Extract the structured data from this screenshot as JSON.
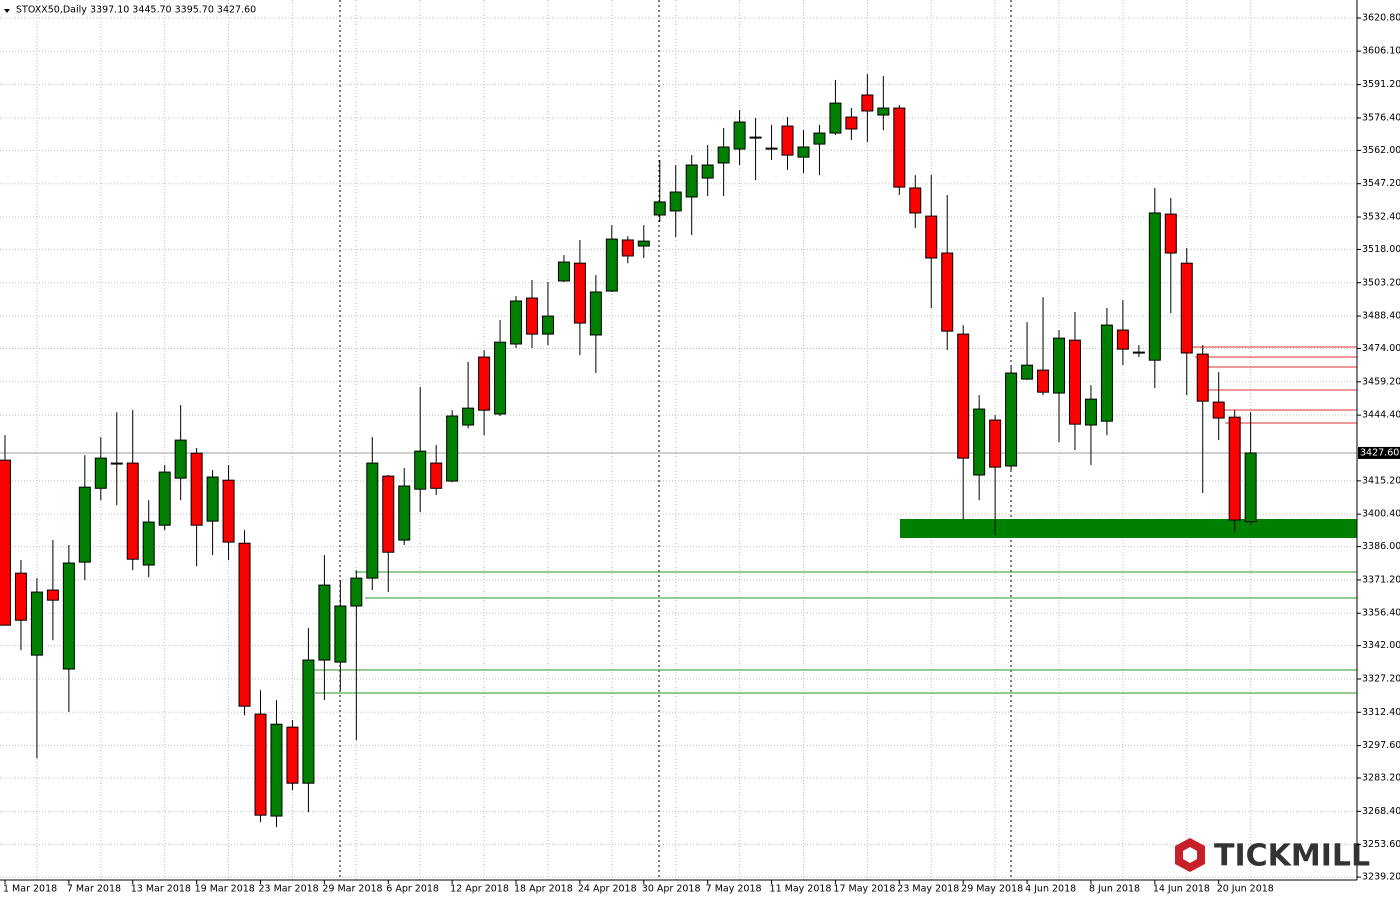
{
  "chart_data": {
    "type": "candlestick",
    "title": "STOXX50,Daily",
    "ohlc_label": "3397.10 3445.70 3395.70 3427.60",
    "logo": "TICKMILL",
    "up_color": "#008000",
    "down_color": "#ff0000",
    "grid": true,
    "categories": [
      "1 Mar 2018",
      null,
      null,
      null,
      "7 Mar 2018",
      null,
      null,
      null,
      "13 Mar 2018",
      null,
      null,
      null,
      "19 Mar 2018",
      null,
      null,
      null,
      "23 Mar 2018",
      null,
      null,
      null,
      "29 Mar 2018",
      null,
      null,
      null,
      "6 Apr 2018",
      null,
      null,
      null,
      "12 Apr 2018",
      null,
      null,
      null,
      "18 Apr 2018",
      null,
      null,
      null,
      "24 Apr 2018",
      null,
      null,
      null,
      "30 Apr 2018",
      null,
      null,
      null,
      "7 May 2018",
      null,
      null,
      null,
      "11 May 2018",
      null,
      null,
      null,
      "17 May 2018",
      null,
      null,
      null,
      "23 May 2018",
      null,
      null,
      null,
      "29 May 2018",
      null,
      null,
      null,
      "4 Jun 2018",
      null,
      null,
      null,
      "8 Jun 2018",
      null,
      null,
      null,
      "14 Jun 2018",
      null,
      null,
      null,
      "20 Jun 2018",
      null,
      null
    ],
    "open": [
      3424.4,
      3374.2,
      3337.8,
      3366.7,
      3331.6,
      3379.1,
      3411.9,
      3423.1,
      3423.1,
      3377.8,
      3395.5,
      3416.4,
      3427.5,
      3397.3,
      3415.5,
      3387.5,
      3311.6,
      3266.3,
      3305.8,
      3280.9,
      3335.6,
      3334.7,
      3359.6,
      3372.0,
      3417.3,
      3388.9,
      3411.5,
      3423.1,
      3415.1,
      3440.0,
      3470.2,
      3444.9,
      3476.0,
      3496.4,
      3480.4,
      3504.0,
      3511.9,
      3480.0,
      3499.5,
      3522.2,
      3519.5,
      3533.3,
      3535.1,
      3541.3,
      3549.7,
      3556.4,
      3562.6,
      3567.9,
      3563.0,
      3572.8,
      3559.0,
      3564.8,
      3569.7,
      3576.8,
      3586.6,
      3577.7,
      3580.8,
      3545.3,
      3532.8,
      3516.4,
      3480.4,
      3417.8,
      3442.2,
      3421.8,
      3460.4,
      3464.4,
      3454.2,
      3477.7,
      3440.0,
      3441.7,
      3482.2,
      3472.4,
      3468.8,
      3533.7,
      3511.9,
      3471.5,
      3450.2,
      3443.5,
      3397.1
    ],
    "high": [
      3435.5,
      3380.0,
      3372.0,
      3388.9,
      3386.7,
      3426.6,
      3434.6,
      3445.7,
      3446.6,
      3406.6,
      3422.2,
      3448.9,
      3429.8,
      3420.0,
      3422.2,
      3393.3,
      3322.2,
      3317.8,
      3308.9,
      3349.8,
      3382.2,
      3371.1,
      3375.5,
      3434.6,
      3417.8,
      3420.9,
      3456.9,
      3431.1,
      3446.6,
      3468.0,
      3473.3,
      3486.6,
      3497.3,
      3504.4,
      3503.5,
      3515.5,
      3522.2,
      3506.6,
      3528.8,
      3523.9,
      3528.8,
      3557.7,
      3555.5,
      3559.9,
      3564.4,
      3571.9,
      3579.9,
      3576.4,
      3573.3,
      3576.8,
      3571.0,
      3573.3,
      3593.3,
      3580.8,
      3595.9,
      3595.0,
      3582.1,
      3551.0,
      3551.0,
      3542.2,
      3484.4,
      3453.3,
      3444.4,
      3466.6,
      3485.7,
      3496.8,
      3482.2,
      3490.2,
      3457.7,
      3492.0,
      3495.5,
      3475.5,
      3545.3,
      3540.8,
      3518.6,
      3475.5,
      3463.5,
      3446.6,
      3445.7
    ],
    "low": [
      3351.1,
      3340.0,
      3292.0,
      3344.4,
      3312.5,
      3371.1,
      3406.6,
      3404.4,
      3375.5,
      3372.4,
      3393.3,
      3406.6,
      3377.3,
      3382.2,
      3380.0,
      3311.1,
      3263.6,
      3261.4,
      3277.8,
      3268.0,
      3317.8,
      3322.2,
      3300.0,
      3366.7,
      3365.8,
      3386.7,
      3401.3,
      3408.9,
      3414.6,
      3438.6,
      3435.5,
      3444.0,
      3474.2,
      3474.2,
      3475.5,
      3503.5,
      3471.1,
      3463.1,
      3499.1,
      3511.9,
      3514.2,
      3530.2,
      3523.5,
      3524.4,
      3541.7,
      3541.7,
      3555.5,
      3548.8,
      3557.7,
      3553.3,
      3551.9,
      3551.0,
      3568.8,
      3566.6,
      3565.7,
      3571.0,
      3542.2,
      3527.5,
      3492.0,
      3473.3,
      3397.8,
      3406.6,
      3391.1,
      3420.0,
      3460.0,
      3453.3,
      3432.4,
      3428.9,
      3422.2,
      3435.5,
      3466.6,
      3470.2,
      3456.4,
      3489.7,
      3453.3,
      3409.8,
      3433.3,
      3392.4,
      3395.7
    ],
    "close": [
      3351.1,
      3353.3,
      3365.8,
      3362.2,
      3378.7,
      3412.4,
      3425.3,
      3422.9,
      3380.4,
      3396.9,
      3419.1,
      3433.3,
      3395.5,
      3416.9,
      3388.0,
      3315.1,
      3266.7,
      3307.1,
      3280.9,
      3335.6,
      3368.9,
      3359.6,
      3372.0,
      3423.1,
      3383.5,
      3412.9,
      3428.4,
      3411.9,
      3444.0,
      3447.5,
      3446.6,
      3476.8,
      3495.1,
      3480.4,
      3488.4,
      3512.4,
      3485.3,
      3499.1,
      3522.6,
      3515.1,
      3521.7,
      3539.1,
      3543.5,
      3555.5,
      3555.5,
      3563.5,
      3574.6,
      3567.7,
      3562.6,
      3559.9,
      3563.5,
      3569.7,
      3583.0,
      3571.5,
      3579.5,
      3580.8,
      3545.7,
      3534.2,
      3514.2,
      3481.7,
      3425.3,
      3447.1,
      3421.3,
      3463.1,
      3466.6,
      3454.6,
      3478.6,
      3440.4,
      3451.5,
      3484.4,
      3473.7,
      3472.2,
      3534.2,
      3516.4,
      3472.0,
      3450.6,
      3443.1,
      3397.8,
      3427.6
    ],
    "ylim": [
      3237.9,
      3628.8
    ],
    "yticks": [
      {
        "value": 3620.8,
        "label": "3620.80"
      },
      {
        "value": 3606.1,
        "label": "3606.10"
      },
      {
        "value": 3591.2,
        "label": "3591.20"
      },
      {
        "value": 3576.4,
        "label": "3576.40"
      },
      {
        "value": 3562.0,
        "label": "3562.00"
      },
      {
        "value": 3547.2,
        "label": "3547.20"
      },
      {
        "value": 3532.4,
        "label": "3532.40"
      },
      {
        "value": 3518.0,
        "label": "3518.00"
      },
      {
        "value": 3503.2,
        "label": "3503.20"
      },
      {
        "value": 3488.4,
        "label": "3488.40"
      },
      {
        "value": 3474.0,
        "label": "3474.00"
      },
      {
        "value": 3459.2,
        "label": "3459.20"
      },
      {
        "value": 3444.4,
        "label": "3444.40"
      },
      {
        "value": 3415.2,
        "label": "3415.20"
      },
      {
        "value": 3400.4,
        "label": "3400.40"
      },
      {
        "value": 3386.0,
        "label": "3386.00"
      },
      {
        "value": 3371.2,
        "label": "3371.20"
      },
      {
        "value": 3356.4,
        "label": "3356.40"
      },
      {
        "value": 3342.0,
        "label": "3342.00"
      },
      {
        "value": 3327.2,
        "label": "3327.20"
      },
      {
        "value": 3312.4,
        "label": "3312.40"
      },
      {
        "value": 3297.6,
        "label": "3297.60"
      },
      {
        "value": 3283.2,
        "label": "3283.20"
      },
      {
        "value": 3268.4,
        "label": "3268.40"
      },
      {
        "value": 3253.6,
        "label": "3253.60"
      },
      {
        "value": 3239.2,
        "label": "3239.20"
      }
    ],
    "current_price": {
      "value": 3427.6,
      "label": "3427.60"
    }
  }
}
